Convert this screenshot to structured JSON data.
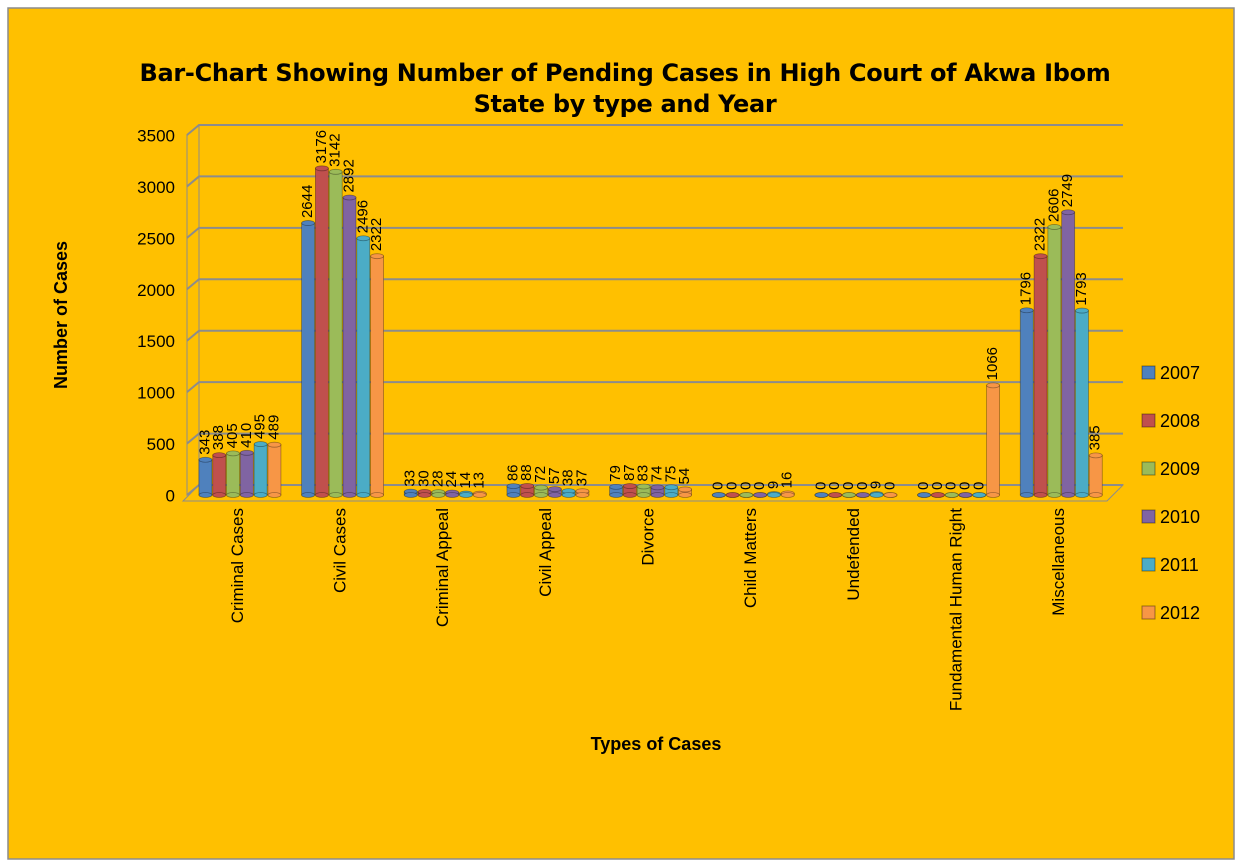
{
  "chart_data": {
    "type": "bar",
    "title": "Bar-Chart Showing Number of Pending Cases in High Court of Akwa Ibom State by type and Year",
    "x_label": "Types of Cases",
    "y_label": "Number of Cases",
    "categories": [
      "Criminal Cases",
      "Civil Cases",
      "Criminal Appeal",
      "Civil Appeal",
      "Divorce",
      "Child Matters",
      "Undefended",
      "Fundamental Human Right",
      "Miscellaneous"
    ],
    "series": [
      {
        "name": "2007",
        "color": "#4f81bd",
        "values": [
          343,
          2644,
          33,
          86,
          79,
          0,
          0,
          0,
          1796
        ]
      },
      {
        "name": "2008",
        "color": "#c0504d",
        "values": [
          388,
          3176,
          30,
          88,
          87,
          0,
          0,
          0,
          2322
        ]
      },
      {
        "name": "2009",
        "color": "#9bbb59",
        "values": [
          405,
          3142,
          28,
          72,
          83,
          0,
          0,
          0,
          2606
        ]
      },
      {
        "name": "2010",
        "color": "#8064a2",
        "values": [
          410,
          2892,
          24,
          57,
          74,
          0,
          0,
          0,
          2749
        ]
      },
      {
        "name": "2011",
        "color": "#4bacc6",
        "values": [
          495,
          2496,
          14,
          38,
          75,
          9,
          9,
          0,
          1793
        ]
      },
      {
        "name": "2012",
        "color": "#f79646",
        "values": [
          489,
          2322,
          13,
          37,
          54,
          16,
          0,
          1066,
          385
        ]
      }
    ],
    "ylim": [
      0,
      3500
    ],
    "yticks": [
      0,
      500,
      1000,
      1500,
      2000,
      2500,
      3000,
      3500
    ],
    "grid": true,
    "legend": "right"
  }
}
